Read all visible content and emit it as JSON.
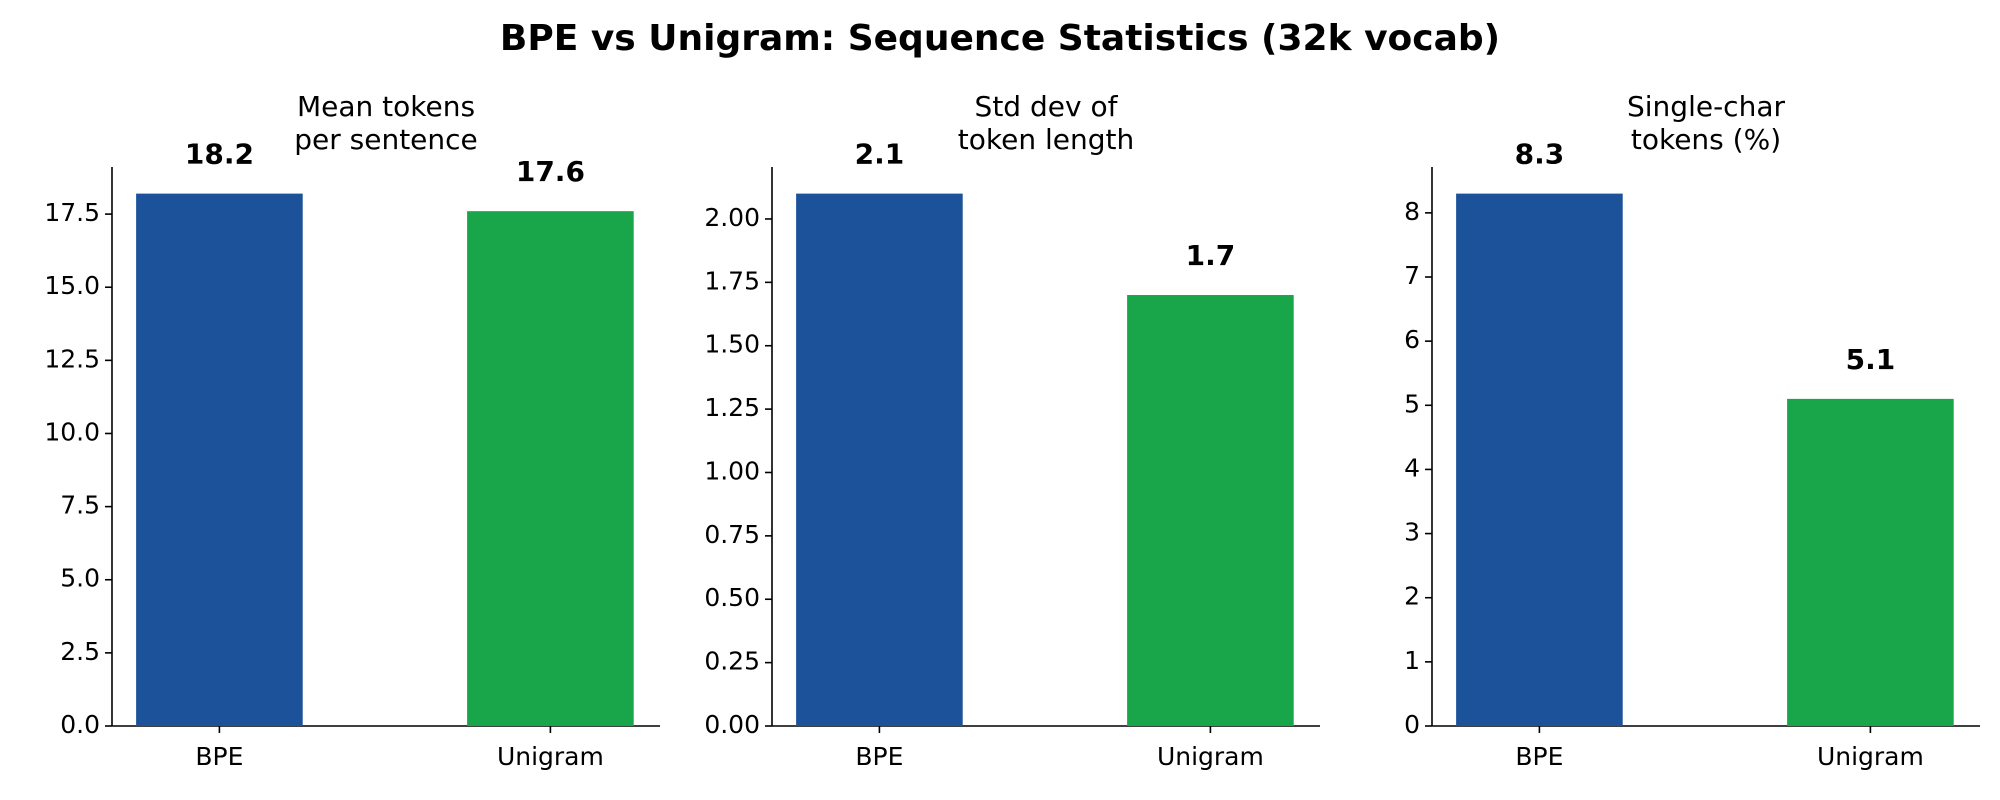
{
  "title": "BPE vs Unigram: Sequence Statistics (32k vocab)",
  "chart_data": [
    {
      "type": "bar",
      "title": [
        "Mean tokens",
        "per sentence"
      ],
      "categories": [
        "BPE",
        "Unigram"
      ],
      "values": [
        18.2,
        17.6
      ],
      "colors": [
        "#1c5299",
        "#19a54a"
      ],
      "ylim": [
        0,
        19.11
      ],
      "yticks": [
        {
          "value": 0,
          "label": "0.0"
        },
        2.5,
        {
          "value": 5,
          "label": "5.0"
        },
        7.5,
        {
          "value": 10,
          "label": "10.0"
        },
        12.5,
        {
          "value": 15,
          "label": "15.0"
        },
        17.5
      ]
    },
    {
      "type": "bar",
      "title": [
        "Std dev of",
        "token length"
      ],
      "categories": [
        "BPE",
        "Unigram"
      ],
      "values": [
        2.1,
        1.7
      ],
      "colors": [
        "#1c5299",
        "#19a54a"
      ],
      "ylim": [
        0,
        2.205
      ],
      "yticks": [
        {
          "value": 0,
          "label": "0.00"
        },
        0.25,
        {
          "value": 0.5,
          "label": "0.50"
        },
        0.75,
        {
          "value": 1,
          "label": "1.00"
        },
        1.25,
        {
          "value": 1.5,
          "label": "1.50"
        },
        1.75,
        {
          "value": 2,
          "label": "2.00"
        }
      ]
    },
    {
      "type": "bar",
      "title": [
        "Single-char",
        "tokens (%)"
      ],
      "categories": [
        "BPE",
        "Unigram"
      ],
      "values": [
        8.3,
        5.1
      ],
      "colors": [
        "#1c5299",
        "#19a54a"
      ],
      "ylim": [
        0,
        8.715
      ],
      "yticks": [
        0,
        1,
        2,
        3,
        4,
        5,
        6,
        7,
        8
      ]
    }
  ]
}
